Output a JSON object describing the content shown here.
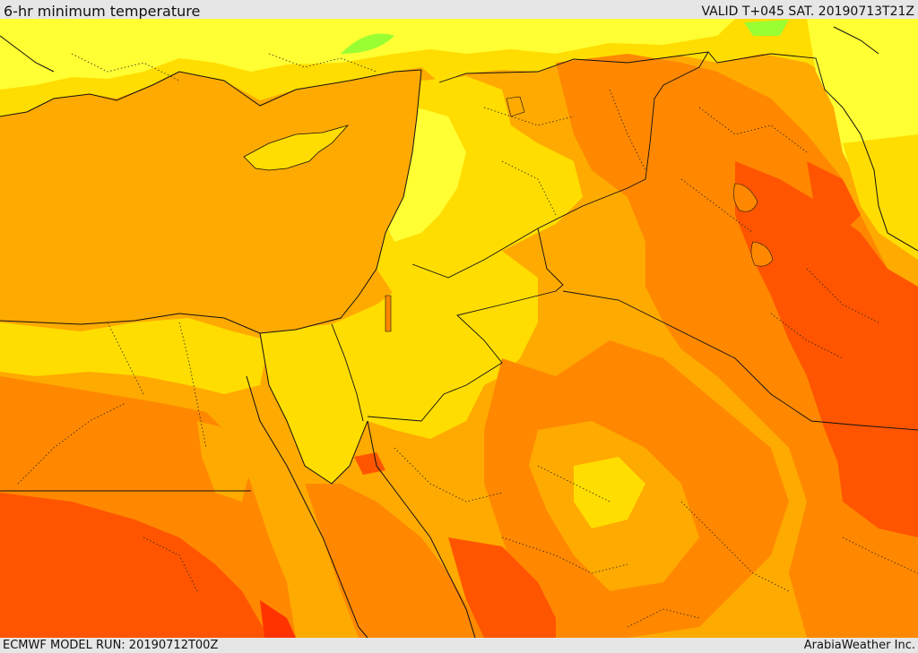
{
  "header": {
    "title": "6-hr minimum temperature",
    "valid": "VALID T+045 SAT. 20190713T21Z"
  },
  "footer": {
    "model_run": "ECMWF MODEL RUN: 20190712T00Z",
    "credit": "ArabiaWeather Inc."
  },
  "colors": {
    "sea": "#ffaa00",
    "light_yellow": "#ffff33",
    "yellow": "#ffdd00",
    "orange": "#ffaa00",
    "dark_orange": "#ff8800",
    "red_orange": "#ff5500",
    "red": "#ff3300",
    "green": "#99ff33",
    "border": "#111111"
  }
}
